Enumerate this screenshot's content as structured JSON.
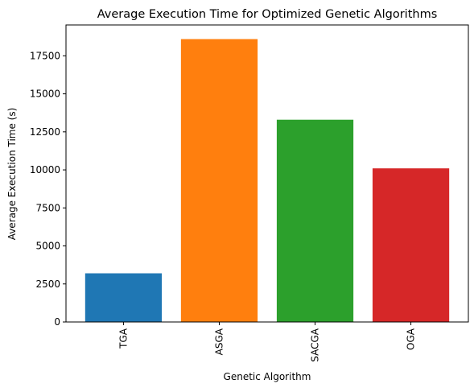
{
  "chart_data": {
    "type": "bar",
    "title": "Average Execution Time for Optimized Genetic Algorithms",
    "xlabel": "Genetic Algorithm",
    "ylabel": "Average Execution Time (s)",
    "categories": [
      "TGA",
      "ASGA",
      "SACGA",
      "OGA"
    ],
    "values": [
      3200,
      18600,
      13300,
      10100
    ],
    "colors": [
      "#1f77b4",
      "#ff7f0e",
      "#2ca02c",
      "#d62728"
    ],
    "ylim": [
      0,
      19530
    ],
    "yticks": [
      0,
      2500,
      5000,
      7500,
      10000,
      12500,
      15000,
      17500
    ],
    "ytick_labels": [
      "0",
      "2500",
      "5000",
      "7500",
      "10000",
      "12500",
      "15000",
      "17500"
    ],
    "xtick_rotation": 90,
    "grid": false,
    "legend": "none"
  }
}
